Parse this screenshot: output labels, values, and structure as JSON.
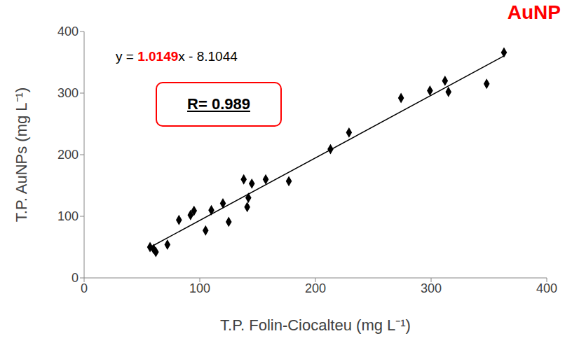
{
  "chart_data": {
    "type": "scatter",
    "title": "AuNP",
    "title_color": "#ff0000",
    "x_label": "T.P. Folin-Ciocalteu (mg L⁻¹)",
    "y_label": "T.P. AuNPs (mg L⁻¹)",
    "x": [
      57,
      60,
      62,
      72,
      82,
      92,
      95,
      105,
      110,
      120,
      125,
      138,
      141,
      142,
      145,
      157,
      177,
      213,
      229,
      274,
      299,
      312,
      315,
      348,
      363
    ],
    "values": [
      50,
      47,
      42,
      54,
      94,
      102,
      109,
      77,
      110,
      121,
      91,
      160,
      115,
      130,
      153,
      160,
      157,
      209,
      236,
      292,
      304,
      320,
      302,
      315,
      366
    ],
    "color": "#000000",
    "marker": "diamond",
    "xlim": [
      0,
      400
    ],
    "xticks": [
      0,
      100,
      200,
      300,
      400
    ],
    "ylim": [
      0,
      400
    ],
    "yticks": [
      0,
      100,
      200,
      300,
      400
    ],
    "grid": false,
    "trendline": {
      "slope": 1.0149,
      "intercept": -8.1044,
      "color": "#000000"
    },
    "equation": [
      {
        "text": "y = ",
        "color": "#000000"
      },
      {
        "text": "1.0149",
        "color": "#ff0000"
      },
      {
        "text": "x - 8.1044",
        "color": "#000000"
      }
    ],
    "r_label": {
      "text": "R= 0.989",
      "color": "#000000",
      "box_color": "#ff0000"
    }
  }
}
